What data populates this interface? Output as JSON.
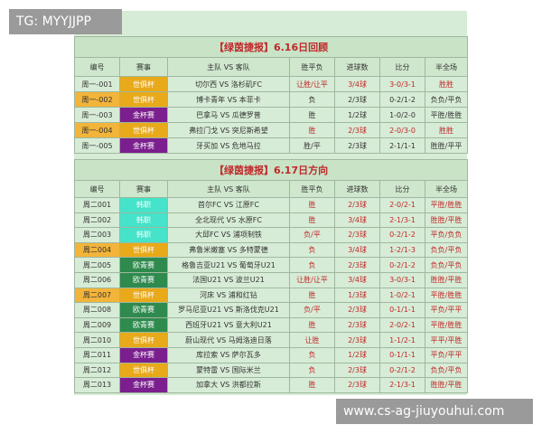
{
  "watermark": "TG: MYYJJPP",
  "site": "www.cs-ag-jiuyouhui.com",
  "tables": [
    {
      "title": "【绿茵捷报】6.16日回顾",
      "headers": [
        "编号",
        "赛事",
        "主队 VS 客队",
        "胜平负",
        "进球数",
        "比分",
        "半全场"
      ],
      "event_colors": [
        "#e8a91a",
        "#e8a91a",
        "#7b1f8e",
        "#e8a91a",
        "#7b1f8e"
      ],
      "number_colors": [
        "#d7ecd6",
        "#f2b43a",
        "#d7ecd6",
        "#f2b43a",
        "#d7ecd6"
      ],
      "rows": [
        [
          "周一-001",
          "世俱杯",
          "切尔西 VS 洛杉矶FC",
          "让胜/让平",
          "3/4球",
          "3-0/3-1",
          "胜胜"
        ],
        [
          "周一-002",
          "世俱杯",
          "博卡青年 VS 本菲卡",
          "负",
          "2/3球",
          "0-2/1-2",
          "负负/平负"
        ],
        [
          "周一-003",
          "金杯赛",
          "巴拿马 VS 瓜德罗普",
          "胜",
          "1/2球",
          "1-0/2-0",
          "平胜/胜胜"
        ],
        [
          "周一-004",
          "世俱杯",
          "弗拉门戈 VS 突尼斯希望",
          "胜",
          "2/3球",
          "2-0/3-0",
          "胜胜"
        ],
        [
          "周一-005",
          "金杯赛",
          "牙买加 VS 危地马拉",
          "胜/平",
          "2/3球",
          "2-1/1-1",
          "胜胜/平平"
        ]
      ]
    },
    {
      "title": "【绿茵捷报】6.17日方向",
      "headers": [
        "编号",
        "赛事",
        "主队 VS 客队",
        "胜平负",
        "进球数",
        "比分",
        "半全场"
      ],
      "event_colors": [
        "#45e3c9",
        "#45e3c9",
        "#45e3c9",
        "#e8a91a",
        "#2f8a4e",
        "#2f8a4e",
        "#e8a91a",
        "#2f8a4e",
        "#2f8a4e",
        "#e8a91a",
        "#7b1f8e",
        "#e8a91a",
        "#7b1f8e"
      ],
      "number_colors": [
        "#d7ecd6",
        "#d7ecd6",
        "#d7ecd6",
        "#f2b43a",
        "#d7ecd6",
        "#d7ecd6",
        "#f2b43a",
        "#d7ecd6",
        "#d7ecd6",
        "#d7ecd6",
        "#d7ecd6",
        "#d7ecd6",
        "#d7ecd6"
      ],
      "rows": [
        [
          "周二001",
          "韩职",
          "首尔FC VS 江原FC",
          "胜",
          "2/3球",
          "2-0/2-1",
          "平胜/胜胜"
        ],
        [
          "周二002",
          "韩职",
          "全北现代 VS 水原FC",
          "胜",
          "3/4球",
          "2-1/3-1",
          "胜胜/平胜"
        ],
        [
          "周二003",
          "韩职",
          "大邱FC VS 浦项制铁",
          "负/平",
          "2/3球",
          "0-2/1-2",
          "平负/负负"
        ],
        [
          "周二004",
          "世俱杯",
          "弗鲁米嫩塞 VS 多特蒙德",
          "负",
          "3/4球",
          "1-2/1-3",
          "负负/平负"
        ],
        [
          "周二005",
          "欧青赛",
          "格鲁吉亚U21 VS 葡萄牙U21",
          "负",
          "2/3球",
          "0-2/1-2",
          "负负/平负"
        ],
        [
          "周二006",
          "欧青赛",
          "法国U21 VS 波兰U21",
          "让胜/让平",
          "3/4球",
          "3-0/3-1",
          "胜胜/平胜"
        ],
        [
          "周二007",
          "世俱杯",
          "河床 VS 浦和红钻",
          "胜",
          "1/3球",
          "1-0/2-1",
          "平胜/胜胜"
        ],
        [
          "周二008",
          "欧青赛",
          "罗马尼亚U21 VS 斯洛伐克U21",
          "负/平",
          "2/3球",
          "0-1/1-1",
          "平负/平平"
        ],
        [
          "周二009",
          "欧青赛",
          "西班牙U21 VS 意大利U21",
          "胜",
          "2/3球",
          "2-0/2-1",
          "平胜/胜胜"
        ],
        [
          "周二010",
          "世俱杯",
          "蔚山现代 VS 马姆洛迪日落",
          "让胜",
          "2/3球",
          "1-1/2-1",
          "平平/平胜"
        ],
        [
          "周二011",
          "金杯赛",
          "库拉索 VS 萨尔瓦多",
          "负",
          "1/2球",
          "0-1/1-1",
          "平负/平平"
        ],
        [
          "周二012",
          "世俱杯",
          "蒙特雷 VS 国际米兰",
          "负",
          "2/3球",
          "0-2/1-2",
          "负负/平负"
        ],
        [
          "周二013",
          "金杯赛",
          "加拿大 VS 洪都拉斯",
          "胜",
          "2/3球",
          "2-1/3-1",
          "胜胜/平胜"
        ]
      ]
    }
  ]
}
